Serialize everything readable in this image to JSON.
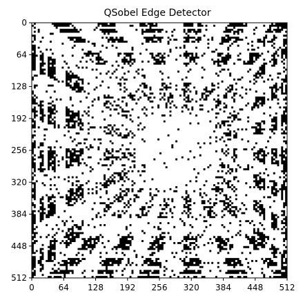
{
  "chart_data": {
    "type": "heatmap",
    "title": "QSobel Edge Detector",
    "xlabel": "",
    "ylabel": "",
    "xlim": [
      0,
      512
    ],
    "ylim": [
      512,
      0
    ],
    "x_ticks": [
      "0",
      "64",
      "128",
      "192",
      "256",
      "320",
      "384",
      "448",
      "512"
    ],
    "y_ticks": [
      "0",
      "64",
      "128",
      "192",
      "256",
      "320",
      "384",
      "448",
      "512"
    ],
    "colormap": "binary",
    "colors": {
      "edge": "#000000",
      "background": "#ffffff"
    },
    "grid": false
  }
}
